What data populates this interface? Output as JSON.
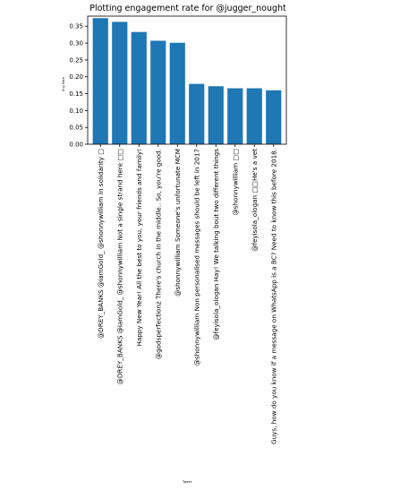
{
  "chart_data": {
    "type": "bar",
    "title": "Plotting engagement rate for @jugger_nought",
    "xlabel": "Tweet",
    "ylabel": "Eng Rate",
    "ylim": [
      0,
      0.38
    ],
    "yticks": [
      "0.00",
      "0.05",
      "0.10",
      "0.15",
      "0.20",
      "0.25",
      "0.30",
      "0.35"
    ],
    "grid": false,
    "bar_color": "#1f77b4",
    "categories": [
      "@DREY_BANKS @iamGold_ @shonnywilliam In solidarity □",
      "@DREY_BANKS @iamGold_ @shonnywilliam Not a single strand here □□",
      "Happy New Year! All the best to you, your friends and family!",
      "@godsperfectionz There's church in the middle.. So, you're good.",
      "@shonnywilliam Someone's unfortunate MCM",
      "@shonnywilliam Non personalised messages should be left in 2017",
      "@feyisola_ologan Hay! We talking bout two different things",
      "@shonnywilliam □□",
      "@feyisola_ologan □□He's a vet",
      "Guys, how do you know if a message on WhatsApp is a BC? Need to know this before 2018."
    ],
    "values": [
      0.374,
      0.363,
      0.333,
      0.307,
      0.301,
      0.179,
      0.172,
      0.166,
      0.166,
      0.16
    ]
  }
}
